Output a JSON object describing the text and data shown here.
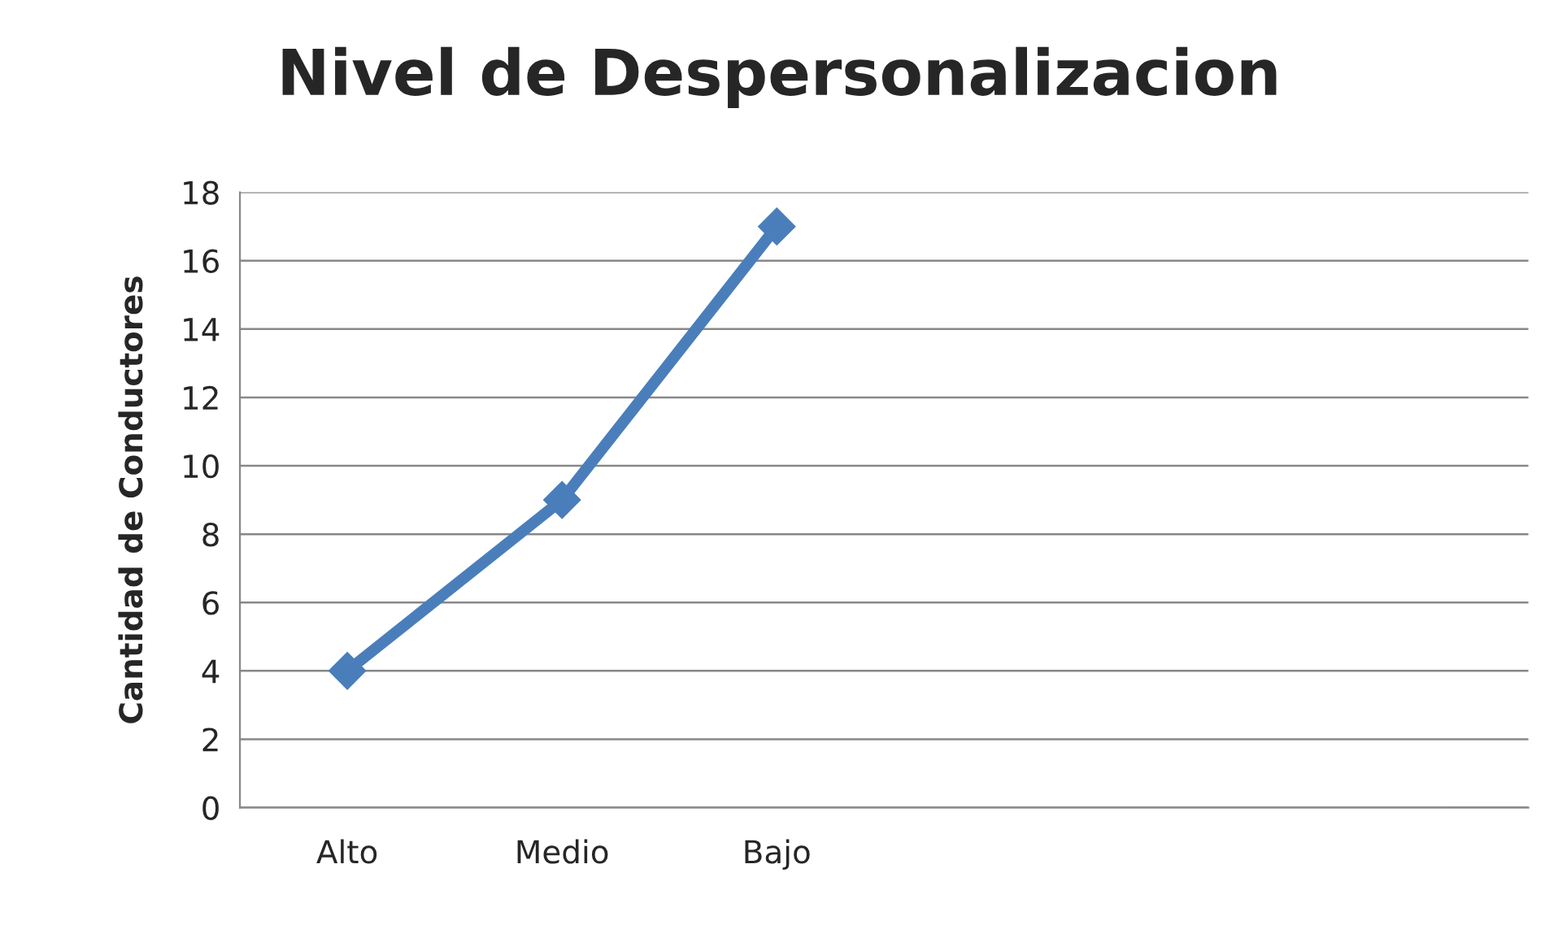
{
  "chart_data": {
    "type": "line",
    "title": "Nivel de Despersonalizacion",
    "ylabel": "Cantidad de Conductores",
    "categories": [
      "Alto",
      "Medio",
      "Bajo",
      null,
      null,
      null
    ],
    "series": [
      {
        "color": "#4a7ebb",
        "values": [
          4,
          9,
          17,
          null,
          null,
          null
        ]
      }
    ],
    "ylim": [
      0,
      18
    ],
    "yticks": [
      0,
      2,
      4,
      6,
      8,
      10,
      12,
      14,
      16,
      18
    ],
    "grid": "y",
    "marker": "diamond",
    "line_style": "solid"
  }
}
